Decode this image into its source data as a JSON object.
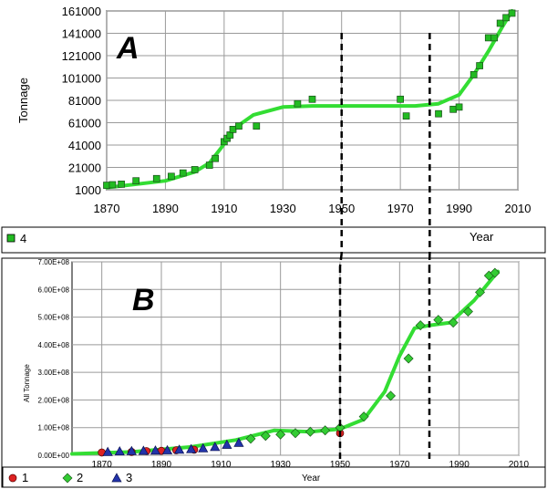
{
  "chart_data": [
    {
      "type": "scatter",
      "panel_label": "A",
      "ylabel": "Tonnage",
      "xlabel": "Year",
      "xlim": [
        1870,
        2010
      ],
      "ylim": [
        1000,
        161000
      ],
      "xticks": [
        1870,
        1890,
        1910,
        1930,
        1950,
        1970,
        1990,
        2010
      ],
      "yticks": [
        1000,
        21000,
        41000,
        61000,
        81000,
        101000,
        121000,
        141000,
        161000
      ],
      "grid": true,
      "legend_position": "bottom-left",
      "series": [
        {
          "name": "4",
          "color": "#22bb22",
          "marker": "square",
          "points": [
            [
              1870,
              5000
            ],
            [
              1872,
              5500
            ],
            [
              1875,
              6000
            ],
            [
              1880,
              9000
            ],
            [
              1887,
              11000
            ],
            [
              1892,
              13000
            ],
            [
              1896,
              16000
            ],
            [
              1900,
              19000
            ],
            [
              1905,
              23000
            ],
            [
              1907,
              29000
            ],
            [
              1910,
              44000
            ],
            [
              1911,
              47000
            ],
            [
              1912,
              50000
            ],
            [
              1913,
              55000
            ],
            [
              1915,
              58000
            ],
            [
              1921,
              58000
            ],
            [
              1935,
              78000
            ],
            [
              1940,
              82000
            ],
            [
              1970,
              82000
            ],
            [
              1972,
              67000
            ],
            [
              1983,
              69000
            ],
            [
              1988,
              73000
            ],
            [
              1990,
              75000
            ],
            [
              1995,
              104000
            ],
            [
              1997,
              112000
            ],
            [
              2000,
              137000
            ],
            [
              2002,
              137000
            ],
            [
              2004,
              150000
            ],
            [
              2006,
              155000
            ],
            [
              2008,
              159000
            ]
          ]
        }
      ],
      "trend": [
        [
          1870,
          3000
        ],
        [
          1890,
          9000
        ],
        [
          1900,
          17000
        ],
        [
          1905,
          25000
        ],
        [
          1910,
          42000
        ],
        [
          1913,
          55000
        ],
        [
          1920,
          68000
        ],
        [
          1930,
          75000
        ],
        [
          1940,
          76000
        ],
        [
          1960,
          76000
        ],
        [
          1975,
          76000
        ],
        [
          1983,
          78000
        ],
        [
          1990,
          86000
        ],
        [
          1995,
          104000
        ],
        [
          2000,
          125000
        ],
        [
          2005,
          148000
        ],
        [
          2008,
          161000
        ]
      ]
    },
    {
      "type": "scatter",
      "panel_label": "B",
      "ylabel": "All Tonnage",
      "xlabel": "Year",
      "xlim": [
        1860,
        2010
      ],
      "ylim": [
        0,
        700000000
      ],
      "xticks": [
        1870,
        1890,
        1910,
        1930,
        1950,
        1970,
        1990,
        2010
      ],
      "yticks": [
        0,
        100000000,
        200000000,
        300000000,
        400000000,
        500000000,
        600000000,
        700000000
      ],
      "ytick_labels": [
        "0.00E+00",
        "1.00E+08",
        "2.00E+08",
        "3.00E+08",
        "4.00E+08",
        "5.00E+08",
        "6.00E+08",
        "7.00E+08"
      ],
      "grid": true,
      "legend_position": "bottom-left",
      "series": [
        {
          "name": "1",
          "color": "#dd2222",
          "marker": "circle",
          "points": [
            [
              1870,
              10000000
            ],
            [
              1880,
              12000000
            ],
            [
              1885,
              15000000
            ],
            [
              1890,
              16000000
            ],
            [
              1895,
              18000000
            ],
            [
              1901,
              20000000
            ],
            [
              1950,
              80000000
            ]
          ]
        },
        {
          "name": "2",
          "color": "#33cc33",
          "marker": "diamond",
          "points": [
            [
              1920,
              60000000
            ],
            [
              1925,
              70000000
            ],
            [
              1930,
              75000000
            ],
            [
              1935,
              80000000
            ],
            [
              1940,
              85000000
            ],
            [
              1945,
              90000000
            ],
            [
              1950,
              100000000
            ],
            [
              1958,
              140000000
            ],
            [
              1967,
              215000000
            ],
            [
              1973,
              350000000
            ],
            [
              1977,
              470000000
            ],
            [
              1983,
              490000000
            ],
            [
              1988,
              480000000
            ],
            [
              1993,
              520000000
            ],
            [
              1997,
              590000000
            ],
            [
              2000,
              650000000
            ],
            [
              2002,
              660000000
            ]
          ]
        },
        {
          "name": "3",
          "color": "#2233aa",
          "marker": "triangle",
          "points": [
            [
              1872,
              12000000
            ],
            [
              1876,
              14000000
            ],
            [
              1880,
              15000000
            ],
            [
              1884,
              16000000
            ],
            [
              1888,
              17000000
            ],
            [
              1892,
              18000000
            ],
            [
              1896,
              20000000
            ],
            [
              1900,
              22000000
            ],
            [
              1904,
              25000000
            ],
            [
              1908,
              30000000
            ],
            [
              1912,
              38000000
            ],
            [
              1916,
              45000000
            ]
          ]
        }
      ],
      "trend": [
        [
          1860,
          5000000
        ],
        [
          1880,
          12000000
        ],
        [
          1900,
          30000000
        ],
        [
          1915,
          55000000
        ],
        [
          1928,
          90000000
        ],
        [
          1940,
          85000000
        ],
        [
          1950,
          95000000
        ],
        [
          1958,
          130000000
        ],
        [
          1965,
          230000000
        ],
        [
          1970,
          360000000
        ],
        [
          1975,
          460000000
        ],
        [
          1980,
          470000000
        ],
        [
          1987,
          480000000
        ],
        [
          1995,
          560000000
        ],
        [
          2003,
          665000000
        ]
      ]
    }
  ],
  "vertical_markers": [
    1950,
    1980
  ]
}
